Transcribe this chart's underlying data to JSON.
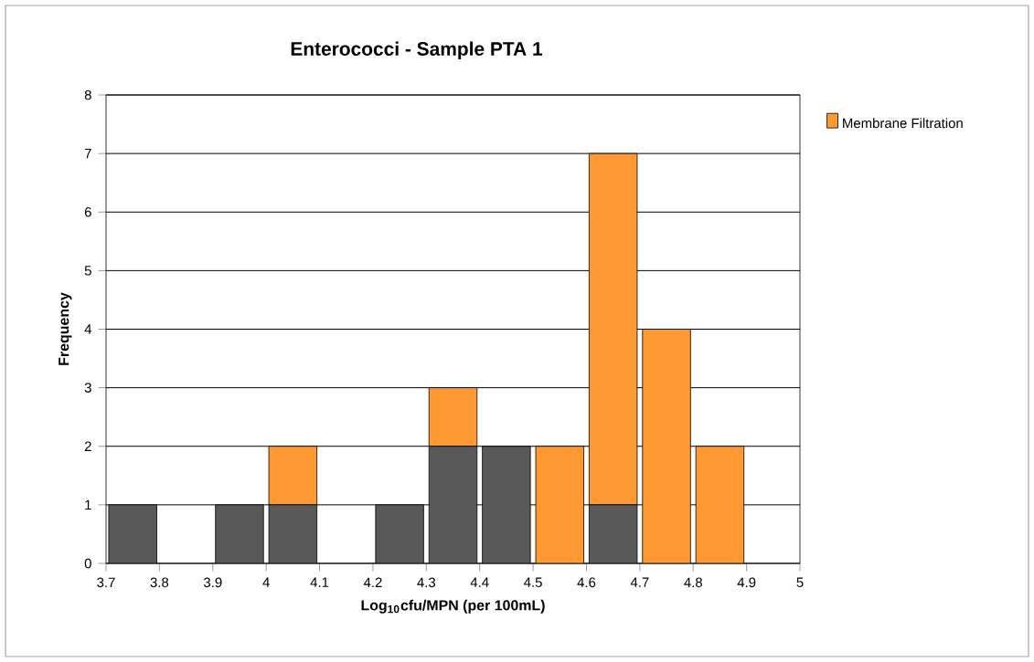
{
  "chart_data": {
    "type": "bar",
    "title": "Enterococci - Sample PTA 1",
    "xlabel": "Log$_{10}$cfu/MPN  (per 100mL)",
    "ylabel": "Frequency",
    "x": [
      3.75,
      3.85,
      3.95,
      4.05,
      4.15,
      4.25,
      4.35,
      4.45,
      4.55,
      4.65,
      4.75,
      4.85,
      4.95
    ],
    "series": [
      {
        "color": "#595959",
        "values": [
          1,
          0,
          1,
          1,
          0,
          1,
          2,
          2,
          0,
          1,
          0,
          0,
          0
        ]
      },
      {
        "name": "Membrane Filtration",
        "color": "#ff9933",
        "values": [
          0,
          0,
          0,
          1,
          0,
          0,
          1,
          0,
          2,
          6,
          4,
          2,
          0
        ]
      }
    ],
    "stacked": true,
    "xlim": [
      3.7,
      5
    ],
    "xticks": [
      3.7,
      3.8,
      3.9,
      4,
      4.1,
      4.2,
      4.3,
      4.4,
      4.5,
      4.6,
      4.7,
      4.8,
      4.9,
      5
    ],
    "ylim": [
      0,
      8
    ],
    "yticks": [
      0,
      1,
      2,
      3,
      4,
      5,
      6,
      7,
      8
    ],
    "grid": "y",
    "legend": "top right"
  }
}
